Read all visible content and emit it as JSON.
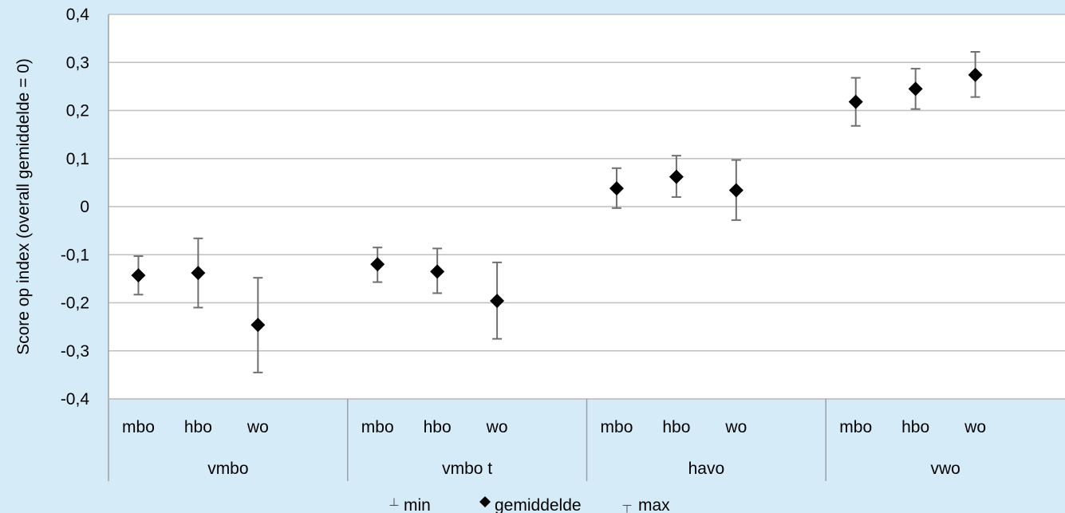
{
  "chart_data": {
    "type": "scatter",
    "ylabel": "Score op index (overall gemiddelde = 0)",
    "ylim": [
      -0.4,
      0.4
    ],
    "yticks": [
      "0,4",
      "0,3",
      "0,2",
      "0,1",
      "0",
      "-0,1",
      "-0,2",
      "-0,3",
      "-0,4"
    ],
    "groups": [
      {
        "label": "vmbo",
        "categories": [
          "mbo",
          "hbo",
          "wo"
        ]
      },
      {
        "label": "vmbo t",
        "categories": [
          "mbo",
          "hbo",
          "wo"
        ]
      },
      {
        "label": "havo",
        "categories": [
          "mbo",
          "hbo",
          "wo"
        ]
      },
      {
        "label": "vwo",
        "categories": [
          "mbo",
          "hbo",
          "wo"
        ]
      }
    ],
    "series": [
      {
        "name": "min",
        "values": [
          -0.183,
          -0.21,
          -0.345,
          -0.157,
          -0.18,
          -0.275,
          -0.003,
          0.02,
          -0.028,
          0.168,
          0.203,
          0.228
        ]
      },
      {
        "name": "gemiddelde",
        "values": [
          -0.143,
          -0.138,
          -0.246,
          -0.12,
          -0.135,
          -0.196,
          0.038,
          0.062,
          0.034,
          0.218,
          0.245,
          0.274
        ]
      },
      {
        "name": "max",
        "values": [
          -0.103,
          -0.066,
          -0.148,
          -0.085,
          -0.087,
          -0.116,
          0.08,
          0.106,
          0.097,
          0.268,
          0.287,
          0.322
        ]
      }
    ],
    "legend": [
      "min",
      "gemiddelde",
      "max"
    ],
    "grid": true,
    "legend_position": "bottom"
  }
}
